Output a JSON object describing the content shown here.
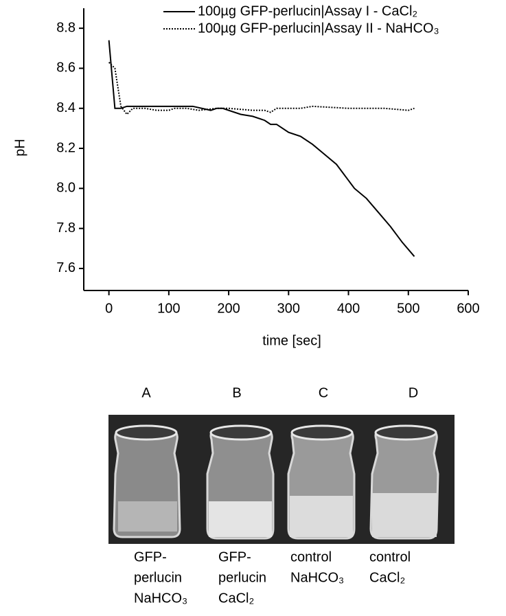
{
  "chart_data": {
    "type": "line",
    "y_label": "pH",
    "x_label": "time [sec]",
    "xlim": [
      -42,
      600
    ],
    "ylim": [
      7.49,
      8.9
    ],
    "xticks": [
      0,
      100,
      200,
      300,
      400,
      500,
      600
    ],
    "yticks": [
      7.6,
      7.8,
      {
        "value": 8,
        "label": "8.0"
      },
      8.2,
      8.4,
      8.6,
      8.8
    ],
    "series": [
      {
        "name": "100µg GFP-perlucin|Assay I - CaCl₂",
        "color": "#000000",
        "style": "solid",
        "x": [
          0,
          10,
          20,
          30,
          140,
          170,
          180,
          190,
          220,
          240,
          260,
          270,
          280,
          300,
          320,
          340,
          360,
          380,
          390,
          400,
          410,
          430,
          450,
          470,
          490,
          510
        ],
        "values": [
          8.74,
          8.4,
          8.4,
          8.41,
          8.41,
          8.39,
          8.4,
          8.4,
          8.37,
          8.36,
          8.34,
          8.32,
          8.32,
          8.28,
          8.26,
          8.22,
          8.17,
          8.12,
          8.08,
          8.04,
          8.0,
          7.95,
          7.88,
          7.81,
          7.73,
          7.66
        ]
      },
      {
        "name": "100µg GFP-perlucin|Assay II - NaHCO₃",
        "color": "#000000",
        "style": "dotted",
        "x": [
          0,
          10,
          20,
          30,
          40,
          60,
          80,
          100,
          110,
          130,
          150,
          180,
          200,
          240,
          260,
          270,
          280,
          320,
          340,
          400,
          460,
          500,
          510
        ],
        "values": [
          8.63,
          8.6,
          8.41,
          8.37,
          8.4,
          8.4,
          8.39,
          8.39,
          8.4,
          8.4,
          8.39,
          8.4,
          8.4,
          8.39,
          8.39,
          8.38,
          8.4,
          8.4,
          8.41,
          8.4,
          8.4,
          8.39,
          8.4
        ]
      }
    ]
  },
  "photo": {
    "panel_labels": [
      "A",
      "B",
      "C",
      "D"
    ],
    "captions": [
      [
        "GFP-",
        "perlucin",
        "NaHCO₃"
      ],
      [
        "GFP-",
        "perlucin",
        "CaCl₂"
      ],
      [
        "control",
        "NaHCO₃"
      ],
      [
        "control",
        "CaCl₂"
      ]
    ]
  }
}
